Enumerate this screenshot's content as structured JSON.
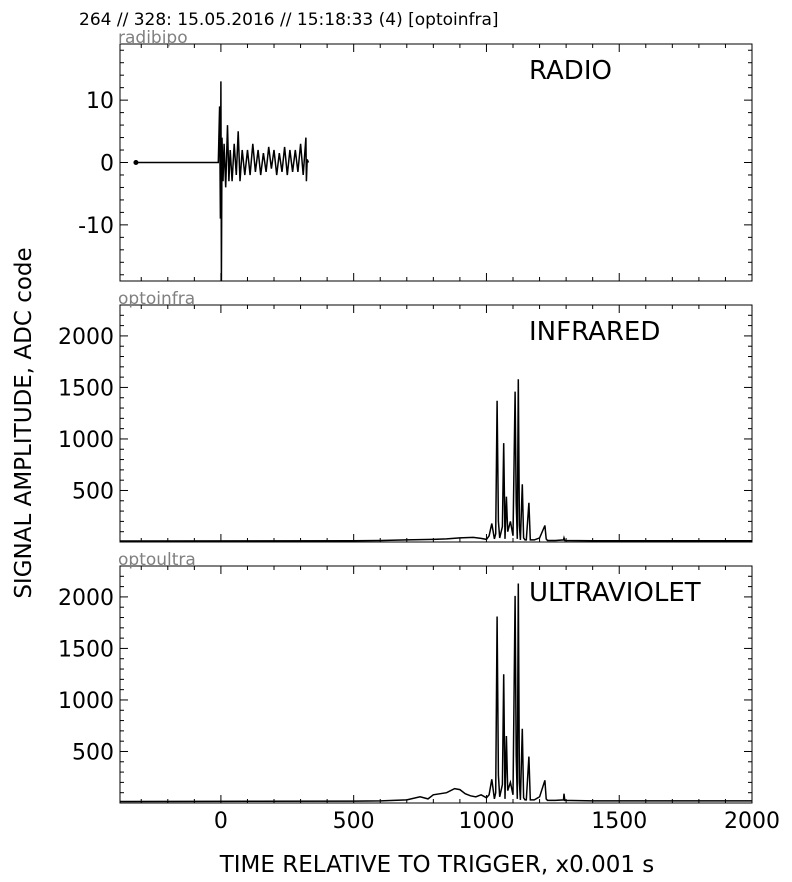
{
  "header": "264 // 328:   15.05.2016 // 15:18:33 (4)  [optoinfra]",
  "ylabel": "SIGNAL AMPLITUDE,  ADC code",
  "xlabel": "TIME RELATIVE TO TRIGGER,   x0.001 s",
  "chart_data": [
    {
      "type": "line",
      "source": "radibipo",
      "title": "RADIO",
      "xlim": [
        -380,
        2000
      ],
      "ylim": [
        -19,
        19
      ],
      "yticks": [
        10,
        0,
        -10
      ],
      "x": [
        -320,
        -250,
        -150,
        -50,
        -10,
        -5,
        -2,
        0,
        2,
        4,
        8,
        12,
        18,
        25,
        30,
        35,
        42,
        50,
        58,
        65,
        72,
        80,
        90,
        100,
        110,
        120,
        130,
        140,
        150,
        160,
        170,
        180,
        190,
        200,
        210,
        220,
        230,
        240,
        250,
        260,
        270,
        280,
        290,
        300,
        310,
        320,
        322,
        325,
        330
      ],
      "values": [
        0,
        0,
        0,
        0,
        0,
        9,
        -9,
        13,
        -19,
        4,
        -3,
        3,
        -4,
        6,
        -3,
        2,
        -3,
        3,
        -2,
        5,
        -3,
        2,
        -2,
        2,
        -2,
        3,
        -1.5,
        2,
        -2,
        1.5,
        -1.5,
        2.5,
        -1,
        2,
        -2,
        1.5,
        -1.5,
        2.5,
        -2,
        2,
        -1.5,
        2,
        -1.5,
        3,
        -2,
        4,
        -3,
        0.5,
        0
      ]
    },
    {
      "type": "line",
      "source": "optoinfra",
      "title": "INFRARED",
      "xlim": [
        -380,
        2000
      ],
      "ylim": [
        0,
        2300
      ],
      "yticks": [
        500,
        1000,
        1500,
        2000
      ],
      "x": [
        -380,
        500,
        600,
        700,
        800,
        850,
        900,
        950,
        980,
        1000,
        1010,
        1020,
        1030,
        1035,
        1040,
        1045,
        1050,
        1060,
        1065,
        1070,
        1075,
        1080,
        1090,
        1100,
        1108,
        1112,
        1116,
        1120,
        1124,
        1128,
        1135,
        1140,
        1145,
        1150,
        1160,
        1165,
        1170,
        1180,
        1200,
        1220,
        1225,
        1230,
        1260,
        1290,
        1292,
        1295,
        1400,
        1600,
        1800,
        2000
      ],
      "values": [
        10,
        12,
        15,
        20,
        25,
        30,
        40,
        45,
        35,
        25,
        60,
        180,
        30,
        80,
        1370,
        200,
        40,
        150,
        960,
        30,
        440,
        100,
        200,
        60,
        1460,
        380,
        30,
        1580,
        160,
        20,
        560,
        40,
        20,
        20,
        380,
        20,
        20,
        20,
        40,
        160,
        30,
        15,
        15,
        20,
        40,
        15,
        12,
        12,
        12,
        12
      ]
    },
    {
      "type": "line",
      "source": "optoultra",
      "title": "ULTRAVIOLET",
      "xlim": [
        -380,
        2000
      ],
      "ylim": [
        0,
        2300
      ],
      "yticks": [
        500,
        1000,
        1500,
        2000
      ],
      "x": [
        -380,
        500,
        600,
        700,
        750,
        780,
        800,
        850,
        880,
        900,
        920,
        940,
        960,
        980,
        1000,
        1010,
        1020,
        1030,
        1035,
        1040,
        1045,
        1050,
        1060,
        1065,
        1070,
        1075,
        1080,
        1090,
        1100,
        1108,
        1112,
        1116,
        1120,
        1124,
        1128,
        1135,
        1140,
        1145,
        1150,
        1160,
        1165,
        1170,
        1180,
        1200,
        1220,
        1225,
        1230,
        1260,
        1290,
        1292,
        1295,
        1400,
        1600,
        1800,
        2000
      ],
      "values": [
        15,
        18,
        20,
        30,
        60,
        40,
        80,
        100,
        140,
        130,
        90,
        70,
        60,
        80,
        50,
        80,
        230,
        40,
        100,
        1810,
        270,
        60,
        180,
        1250,
        40,
        650,
        120,
        200,
        80,
        2010,
        460,
        40,
        2130,
        200,
        30,
        720,
        50,
        30,
        30,
        450,
        30,
        30,
        30,
        60,
        220,
        40,
        25,
        25,
        30,
        90,
        25,
        20,
        20,
        20,
        20
      ]
    }
  ]
}
